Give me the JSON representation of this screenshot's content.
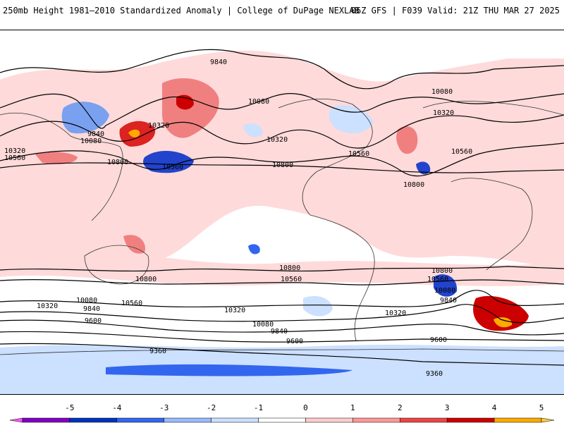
{
  "header": {
    "title": "250mb Height 1981–2010 Standardized Anomaly | College of DuPage NEXLAB",
    "run_info": "06Z GFS | F039 Valid: 21Z THU MAR 27 2025"
  },
  "colorbar": {
    "labels": [
      "-5",
      "-4",
      "-3",
      "-2",
      "-1",
      "0",
      "1",
      "2",
      "3",
      "4",
      "5"
    ],
    "colors": [
      "#ff55ff",
      "#8000c0",
      "#0033bb",
      "#3366ee",
      "#99bbff",
      "#cce0ff",
      "#ffffff",
      "#ffcccc",
      "#ff9999",
      "#ee4444",
      "#cc0000",
      "#ffaa00",
      "#ffcc44"
    ]
  },
  "contour_labels": [
    "9840",
    "10080",
    "10320",
    "9840",
    "10080",
    "10320",
    "10560",
    "10320",
    "10560",
    "10800",
    "10560",
    "10800",
    "10560",
    "10800",
    "10320",
    "10080",
    "10560",
    "10800",
    "10800",
    "10560",
    "10320",
    "10080",
    "9840",
    "9600",
    "10320",
    "10080",
    "9840",
    "10800",
    "10560",
    "10080",
    "9840",
    "10320",
    "9600",
    "9360",
    "9600",
    "9360"
  ],
  "anomaly_colors": {
    "positive_light": "#ffcccc",
    "positive_mid": "#f08080",
    "positive_strong": "#dd2222",
    "positive_max": "#cc0000",
    "positive_core": "#ffaa00",
    "negative_light": "#cce0ff",
    "negative_mid": "#7aa0f0",
    "negative_strong": "#2244cc"
  }
}
